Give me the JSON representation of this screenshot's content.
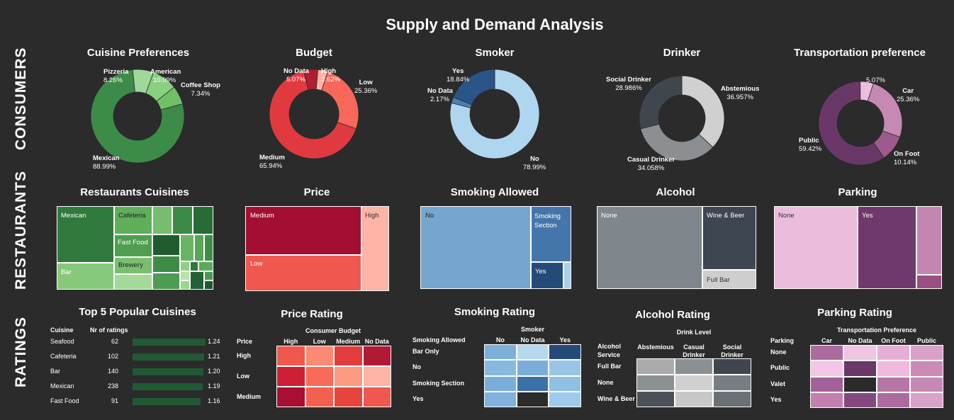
{
  "title": "Supply and Demand Analysis",
  "rows": {
    "consumers": "CONSUMERS",
    "restaurants": "RESTAURANTS",
    "ratings": "RATINGS"
  },
  "consumers": {
    "cuisine": {
      "title": "Cuisine Preferences",
      "slices": [
        {
          "name": "Mexican",
          "pct": "88.99%",
          "value": 88.99,
          "color": "#3d8b48"
        },
        {
          "name": "Pizzeria",
          "pct": "8.26%",
          "value": 8.26,
          "color": "#9fd89a"
        },
        {
          "name": "American",
          "pct": "10.09%",
          "value": 10.09,
          "color": "#8bcf82"
        },
        {
          "name": "Coffee Shop",
          "pct": "7.34%",
          "value": 7.34,
          "color": "#72c065"
        }
      ]
    },
    "budget": {
      "title": "Budget",
      "slices": [
        {
          "name": "Medium",
          "pct": "65.94%",
          "value": 65.94,
          "color": "#e03a40"
        },
        {
          "name": "No Data",
          "pct": "5.07%",
          "value": 5.07,
          "color": "#b01d32"
        },
        {
          "name": "High",
          "pct": "3.62%",
          "value": 3.62,
          "color": "#fdb3a5"
        },
        {
          "name": "Low",
          "pct": "25.36%",
          "value": 25.36,
          "color": "#f7675a"
        }
      ]
    },
    "smoker": {
      "title": "Smoker",
      "slices": [
        {
          "name": "No",
          "pct": "78.99%",
          "value": 78.99,
          "color": "#b0d5ee"
        },
        {
          "name": "No Data",
          "pct": "2.17%",
          "value": 2.17,
          "color": "#4b7fb5"
        },
        {
          "name": "Yes",
          "pct": "18.84%",
          "value": 18.84,
          "color": "#2b5488"
        }
      ]
    },
    "drinker": {
      "title": "Drinker",
      "slices": [
        {
          "name": "Abstemious",
          "pct": "36.957%",
          "value": 36.957,
          "color": "#d0d0d0"
        },
        {
          "name": "Casual Drinker",
          "pct": "34.058%",
          "value": 34.058,
          "color": "#8b8f92"
        },
        {
          "name": "Social Drinker",
          "pct": "28.986%",
          "value": 28.986,
          "color": "#40464e"
        }
      ]
    },
    "transport": {
      "title": "Transportation preference",
      "slices": [
        {
          "name": "Car",
          "pct": "25.36%",
          "value": 25.36,
          "color": "#c689b4"
        },
        {
          "name": "On Foot",
          "pct": "10.14%",
          "value": 10.14,
          "color": "#9e5a8c"
        },
        {
          "name": "Public",
          "pct": "59.42%",
          "value": 59.42,
          "color": "#6a3868"
        },
        {
          "name": "",
          "pct": "5.07%",
          "value": 5.07,
          "color": "#eabedd"
        }
      ]
    }
  },
  "restaurants": {
    "cuisines": {
      "title": "Restaurants Cuisines",
      "labels": {
        "mexican": "Mexican",
        "cafeteria": "Cafeteria",
        "fastfood": "Fast Food",
        "brewery": "Brewery",
        "bar": "Bar"
      }
    },
    "price": {
      "title": "Price",
      "labels": {
        "medium": "Medium",
        "high": "High",
        "low": "Low"
      }
    },
    "smoking": {
      "title": "Smoking Allowed",
      "labels": {
        "no": "No",
        "section": "Smoking Section",
        "yes": "Yes"
      }
    },
    "alcohol": {
      "title": "Alcohol",
      "labels": {
        "none": "None",
        "wine": "Wine & Beer",
        "full": "Full Bar"
      }
    },
    "parking": {
      "title": "Parking",
      "labels": {
        "none": "None",
        "yes": "Yes"
      }
    }
  },
  "ratings": {
    "popular": {
      "title": "Top 5 Popular Cuisines",
      "col1": "Cuisine",
      "col2": "Nr of ratings",
      "rows": [
        {
          "cuisine": "Seafood",
          "n": "62",
          "avg": "1.24",
          "v": 1.24
        },
        {
          "cuisine": "Cafeteria",
          "n": "102",
          "avg": "1.21",
          "v": 1.21
        },
        {
          "cuisine": "Bar",
          "n": "140",
          "avg": "1.20",
          "v": 1.2
        },
        {
          "cuisine": "Mexican",
          "n": "238",
          "avg": "1.19",
          "v": 1.19
        },
        {
          "cuisine": "Fast Food",
          "n": "91",
          "avg": "1.16",
          "v": 1.16
        }
      ]
    },
    "price": {
      "title": "Price Rating",
      "rowHeader": "Price",
      "colHeader": "Consumer Budget",
      "cols": [
        "High",
        "Low",
        "Medium",
        "No Data"
      ],
      "rows": [
        "High",
        "Low",
        "Medium"
      ]
    },
    "smoking": {
      "title": "Smoking Rating",
      "rowHeader": "Smoking Allowed",
      "colHeader": "Smoker",
      "cols": [
        "No",
        "No Data",
        "Yes"
      ],
      "rows": [
        "Bar Only",
        "No",
        "Smoking Section",
        "Yes"
      ]
    },
    "alcohol": {
      "title": "Alcohol Rating",
      "rowHeader1": "Alcohol",
      "rowHeader2": "Service",
      "colHeader": "Drink Level",
      "cols": [
        "Abstemious",
        "Casual Drinker",
        "Social Drinker"
      ],
      "rows": [
        "Full Bar",
        "None",
        "Wine & Beer"
      ]
    },
    "parking": {
      "title": "Parking Rating",
      "rowHeader": "Parking",
      "colHeader": "Transportation Preference",
      "cols": [
        "Car",
        "No Data",
        "On Foot",
        "Public"
      ],
      "rows": [
        "None",
        "Public",
        "Valet",
        "Yes"
      ]
    }
  },
  "chart_data": [
    {
      "type": "pie",
      "title": "Cuisine Preferences",
      "categories": [
        "Mexican",
        "Pizzeria",
        "American",
        "Coffee Shop"
      ],
      "values": [
        88.99,
        8.26,
        10.09,
        7.34
      ]
    },
    {
      "type": "pie",
      "title": "Budget",
      "categories": [
        "Medium",
        "No Data",
        "High",
        "Low"
      ],
      "values": [
        65.94,
        5.07,
        3.62,
        25.36
      ]
    },
    {
      "type": "pie",
      "title": "Smoker",
      "categories": [
        "No",
        "No Data",
        "Yes"
      ],
      "values": [
        78.99,
        2.17,
        18.84
      ]
    },
    {
      "type": "pie",
      "title": "Drinker",
      "categories": [
        "Abstemious",
        "Casual Drinker",
        "Social Drinker"
      ],
      "values": [
        36.957,
        34.058,
        28.986
      ]
    },
    {
      "type": "pie",
      "title": "Transportation preference",
      "categories": [
        "Car",
        "On Foot",
        "Public",
        ""
      ],
      "values": [
        25.36,
        10.14,
        59.42,
        5.07
      ]
    },
    {
      "type": "bar",
      "title": "Top 5 Popular Cuisines",
      "categories": [
        "Seafood",
        "Cafeteria",
        "Bar",
        "Mexican",
        "Fast Food"
      ],
      "values": [
        1.24,
        1.21,
        1.2,
        1.19,
        1.16
      ],
      "nr_ratings": [
        62,
        102,
        140,
        238,
        91
      ]
    }
  ]
}
